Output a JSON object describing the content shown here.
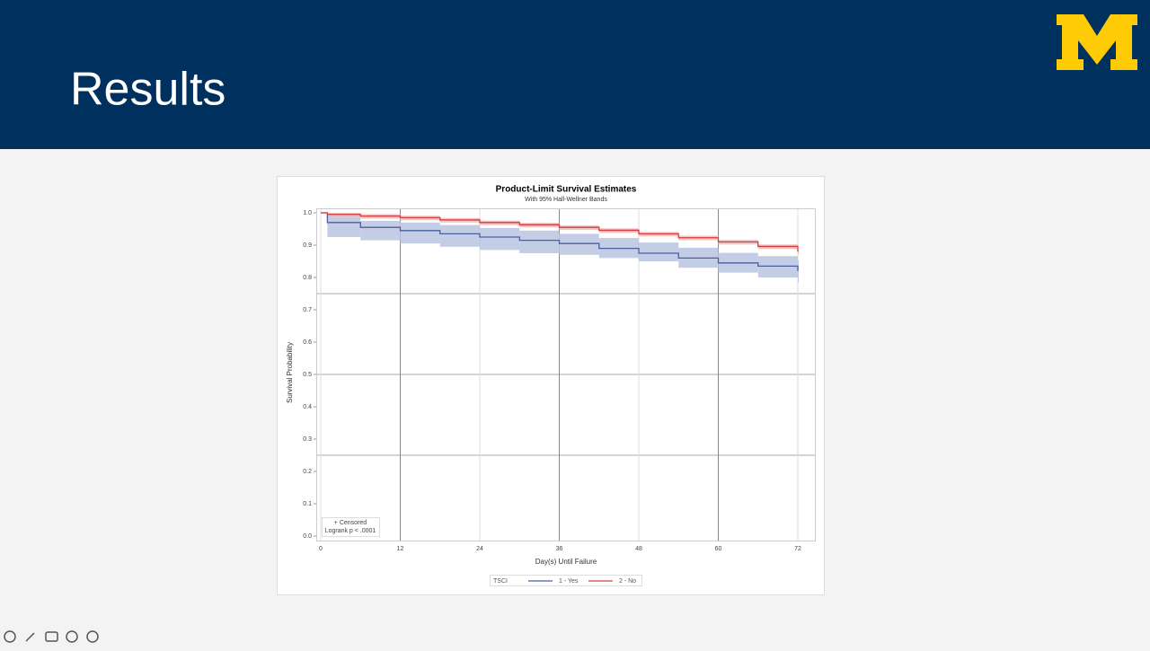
{
  "slide_title": "Results",
  "chart_data": {
    "type": "step-survival",
    "title": "Product-Limit Survival Estimates",
    "subtitle": "With 95% Hall-Wellner Bands",
    "xlabel": "Day(s) Until Failure",
    "ylabel": "Survival Probability",
    "legend_title": "TSCI",
    "annotations": [
      "+ Censored",
      "Logrank p < .0001"
    ],
    "x": [
      0,
      1,
      6,
      12,
      18,
      24,
      30,
      36,
      42,
      48,
      54,
      60,
      66,
      72
    ],
    "series": [
      {
        "name": "1 - Yes",
        "color": "#4a5fa0",
        "band_color": "#b8c4e0",
        "values": [
          1.0,
          0.97,
          0.955,
          0.945,
          0.935,
          0.925,
          0.915,
          0.905,
          0.89,
          0.875,
          0.86,
          0.845,
          0.835,
          0.82
        ],
        "lower": [
          1.0,
          0.925,
          0.915,
          0.905,
          0.895,
          0.885,
          0.875,
          0.87,
          0.86,
          0.85,
          0.83,
          0.815,
          0.8,
          0.785
        ],
        "upper": [
          1.0,
          0.99,
          0.975,
          0.97,
          0.962,
          0.953,
          0.945,
          0.935,
          0.922,
          0.908,
          0.892,
          0.876,
          0.866,
          0.853
        ]
      },
      {
        "name": "2 - No",
        "color": "#d04040",
        "band_color": "#f0b8b8",
        "values": [
          1.0,
          0.995,
          0.99,
          0.985,
          0.978,
          0.97,
          0.963,
          0.955,
          0.946,
          0.935,
          0.923,
          0.91,
          0.896,
          0.88
        ],
        "lower": [
          1.0,
          0.987,
          0.982,
          0.977,
          0.97,
          0.962,
          0.955,
          0.947,
          0.938,
          0.927,
          0.915,
          0.902,
          0.888,
          0.872
        ],
        "upper": [
          1.0,
          1.0,
          0.996,
          0.991,
          0.984,
          0.976,
          0.969,
          0.961,
          0.952,
          0.941,
          0.929,
          0.916,
          0.902,
          0.886
        ]
      }
    ],
    "xlim": [
      0,
      72
    ],
    "ylim": [
      0,
      1.0
    ],
    "xticks": [
      0,
      12,
      24,
      36,
      48,
      60,
      72
    ],
    "yticks": [
      {
        "value": 0,
        "label": "0.0"
      },
      0.1,
      0.2,
      0.3,
      0.4,
      0.5,
      0.6,
      0.7,
      0.8,
      0.9,
      {
        "value": 1,
        "label": "1.0"
      }
    ],
    "ygrid": [
      0.25,
      0.5,
      0.75
    ],
    "grid": true
  }
}
